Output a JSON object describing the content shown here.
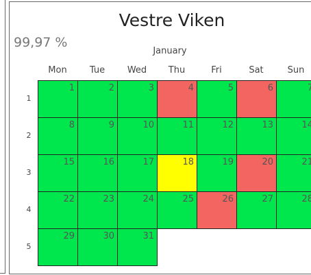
{
  "header": {
    "title": "Vestre Viken",
    "kpi": "99,97 %",
    "month": "January"
  },
  "weekdays": [
    "Mon",
    "Tue",
    "Wed",
    "Thu",
    "Fri",
    "Sat",
    "Sun"
  ],
  "weeks": [
    "1",
    "2",
    "3",
    "4",
    "5"
  ],
  "colors": {
    "ok": "#00e64d",
    "warn": "#ffff00",
    "bad": "#f26560"
  },
  "days": [
    {
      "day": 1,
      "status": "ok"
    },
    {
      "day": 2,
      "status": "ok"
    },
    {
      "day": 3,
      "status": "ok"
    },
    {
      "day": 4,
      "status": "bad"
    },
    {
      "day": 5,
      "status": "ok"
    },
    {
      "day": 6,
      "status": "bad"
    },
    {
      "day": 7,
      "status": "ok"
    },
    {
      "day": 8,
      "status": "ok"
    },
    {
      "day": 9,
      "status": "ok"
    },
    {
      "day": 10,
      "status": "ok"
    },
    {
      "day": 11,
      "status": "ok"
    },
    {
      "day": 12,
      "status": "ok"
    },
    {
      "day": 13,
      "status": "ok"
    },
    {
      "day": 14,
      "status": "ok"
    },
    {
      "day": 15,
      "status": "ok"
    },
    {
      "day": 16,
      "status": "ok"
    },
    {
      "day": 17,
      "status": "ok"
    },
    {
      "day": 18,
      "status": "warn"
    },
    {
      "day": 19,
      "status": "ok"
    },
    {
      "day": 20,
      "status": "bad"
    },
    {
      "day": 21,
      "status": "ok"
    },
    {
      "day": 22,
      "status": "ok"
    },
    {
      "day": 23,
      "status": "ok"
    },
    {
      "day": 24,
      "status": "ok"
    },
    {
      "day": 25,
      "status": "ok"
    },
    {
      "day": 26,
      "status": "bad"
    },
    {
      "day": 27,
      "status": "ok"
    },
    {
      "day": 28,
      "status": "ok"
    },
    {
      "day": 29,
      "status": "ok"
    },
    {
      "day": 30,
      "status": "ok"
    },
    {
      "day": 31,
      "status": "ok"
    }
  ]
}
